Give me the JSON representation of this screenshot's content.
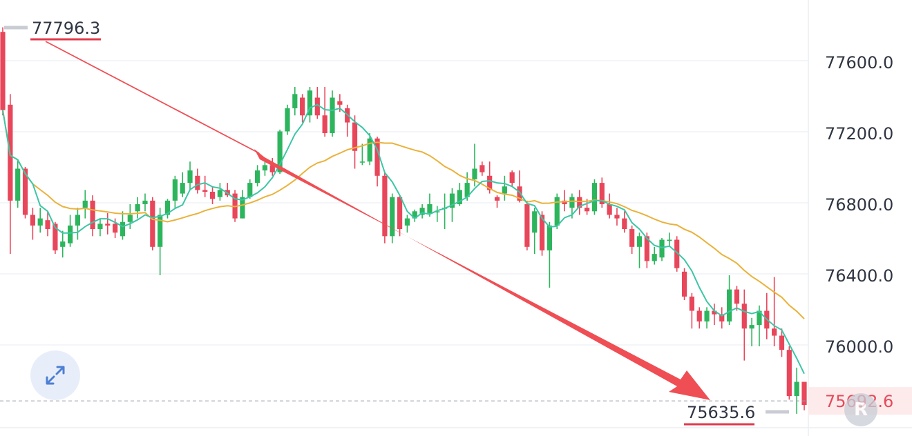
{
  "chart_data": {
    "type": "candlestick",
    "y_axis": {
      "ticks": [
        "77600.0",
        "77200.0",
        "76800.0",
        "76400.0",
        "76000.0"
      ],
      "ylim": [
        75580,
        77920
      ]
    },
    "annotations": {
      "high_label": "77796.3",
      "low_label": "75635.6",
      "current_price": "75692.6"
    },
    "colors": {
      "up": "#2db55d",
      "down": "#e8465a",
      "ma_fast": "#3cc6a6",
      "ma_slow": "#eab23a",
      "arrow": "#ef4e54"
    },
    "candles": [
      [
        77770,
        77330,
        77796,
        77300
      ],
      [
        77360,
        76820,
        77420,
        76520
      ],
      [
        76820,
        77000,
        77050,
        76780
      ],
      [
        77000,
        76740,
        77010,
        76720
      ],
      [
        76740,
        76680,
        76780,
        76600
      ],
      [
        76680,
        76720,
        76780,
        76640
      ],
      [
        76710,
        76660,
        76760,
        76620
      ],
      [
        76690,
        76540,
        76700,
        76520
      ],
      [
        76560,
        76590,
        76650,
        76500
      ],
      [
        76580,
        76680,
        76740,
        76560
      ],
      [
        76680,
        76740,
        76780,
        76600
      ],
      [
        76780,
        76820,
        76880,
        76720
      ],
      [
        76820,
        76660,
        76850,
        76620
      ],
      [
        76660,
        76690,
        76720,
        76620
      ],
      [
        76690,
        76680,
        76750,
        76630
      ],
      [
        76690,
        76640,
        76720,
        76610
      ],
      [
        76620,
        76700,
        76760,
        76600
      ],
      [
        76700,
        76740,
        76800,
        76660
      ],
      [
        76760,
        76800,
        76840,
        76720
      ],
      [
        76800,
        76820,
        76860,
        76760
      ],
      [
        76820,
        76560,
        76840,
        76540
      ],
      [
        76560,
        76740,
        76780,
        76400
      ],
      [
        76740,
        76820,
        76830,
        76720
      ],
      [
        76820,
        76940,
        76960,
        76780
      ],
      [
        76860,
        76920,
        76980,
        76840
      ],
      [
        76920,
        76990,
        77040,
        76880
      ],
      [
        76960,
        76880,
        77000,
        76860
      ],
      [
        76880,
        76870,
        76960,
        76840
      ],
      [
        76870,
        76830,
        76900,
        76800
      ],
      [
        76840,
        76880,
        76920,
        76820
      ],
      [
        76880,
        76850,
        76920,
        76840
      ],
      [
        76860,
        76720,
        76880,
        76700
      ],
      [
        76720,
        76840,
        76880,
        76720
      ],
      [
        76840,
        76920,
        76940,
        76830
      ],
      [
        76920,
        76990,
        77020,
        76900
      ],
      [
        76990,
        77020,
        77050,
        76960
      ],
      [
        77020,
        76980,
        77060,
        76960
      ],
      [
        76980,
        77210,
        77220,
        76970
      ],
      [
        77210,
        77340,
        77360,
        77190
      ],
      [
        77340,
        77420,
        77460,
        77300
      ],
      [
        77400,
        77300,
        77420,
        77260
      ],
      [
        77300,
        77440,
        77460,
        77260
      ],
      [
        77400,
        77300,
        77460,
        77280
      ],
      [
        77300,
        77200,
        77460,
        77180
      ],
      [
        77200,
        77400,
        77440,
        77180
      ],
      [
        77380,
        77360,
        77420,
        77320
      ],
      [
        77340,
        77260,
        77360,
        77180
      ],
      [
        77260,
        77100,
        77300,
        77000
      ],
      [
        77040,
        77040,
        77140,
        77020
      ],
      [
        77040,
        77170,
        77200,
        77020
      ],
      [
        77170,
        76960,
        77180,
        76900
      ],
      [
        76960,
        76620,
        76980,
        76580
      ],
      [
        76620,
        76840,
        76860,
        76580
      ],
      [
        76840,
        76660,
        76850,
        76620
      ],
      [
        76680,
        76720,
        76740,
        76640
      ],
      [
        76720,
        76760,
        76770,
        76700
      ],
      [
        76740,
        76780,
        76800,
        76720
      ],
      [
        76750,
        76800,
        76860,
        76730
      ],
      [
        76760,
        76760,
        76790,
        76700
      ],
      [
        76780,
        76780,
        76860,
        76660
      ],
      [
        76780,
        76860,
        76890,
        76700
      ],
      [
        76800,
        76880,
        76920,
        76790
      ],
      [
        76840,
        76920,
        76980,
        76820
      ],
      [
        76940,
        77000,
        77140,
        76900
      ],
      [
        77020,
        76980,
        77040,
        76960
      ],
      [
        76960,
        76880,
        77040,
        76860
      ],
      [
        76840,
        76820,
        76850,
        76780
      ],
      [
        76860,
        76900,
        76960,
        76820
      ],
      [
        76980,
        76920,
        76990,
        76900
      ],
      [
        76900,
        76820,
        76990,
        76810
      ],
      [
        76800,
        76560,
        76820,
        76540
      ],
      [
        76640,
        76760,
        76780,
        76520
      ],
      [
        76740,
        76540,
        76760,
        76510
      ],
      [
        76540,
        76680,
        76700,
        76330
      ],
      [
        76680,
        76840,
        76860,
        76660
      ],
      [
        76820,
        76800,
        76880,
        76760
      ],
      [
        76780,
        76840,
        76860,
        76720
      ],
      [
        76840,
        76780,
        76880,
        76740
      ],
      [
        76780,
        76760,
        76830,
        76740
      ],
      [
        76760,
        76920,
        76940,
        76740
      ],
      [
        76920,
        76800,
        76950,
        76780
      ],
      [
        76800,
        76740,
        76860,
        76720
      ],
      [
        76740,
        76720,
        76780,
        76680
      ],
      [
        76720,
        76660,
        76760,
        76640
      ],
      [
        76660,
        76560,
        76680,
        76520
      ],
      [
        76560,
        76620,
        76640,
        76440
      ],
      [
        76620,
        76480,
        76640,
        76440
      ],
      [
        76480,
        76520,
        76560,
        76460
      ],
      [
        76500,
        76600,
        76610,
        76480
      ],
      [
        76600,
        76600,
        76640,
        76560
      ],
      [
        76600,
        76440,
        76620,
        76420
      ],
      [
        76420,
        76280,
        76440,
        76260
      ],
      [
        76280,
        76200,
        76300,
        76100
      ],
      [
        76200,
        76140,
        76220,
        76100
      ],
      [
        76140,
        76200,
        76220,
        76100
      ],
      [
        76200,
        76180,
        76240,
        76120
      ],
      [
        76180,
        76140,
        76220,
        76100
      ],
      [
        76140,
        76320,
        76400,
        76120
      ],
      [
        76320,
        76240,
        76340,
        76200
      ],
      [
        76240,
        76100,
        76320,
        75920
      ],
      [
        76100,
        76120,
        76160,
        76000
      ],
      [
        76120,
        76200,
        76230,
        76000
      ],
      [
        76200,
        76100,
        76300,
        76040
      ],
      [
        76100,
        76060,
        76390,
        76000
      ],
      [
        76060,
        75980,
        76100,
        75940
      ],
      [
        75980,
        75720,
        76000,
        75700
      ],
      [
        75720,
        75800,
        75880,
        75620
      ],
      [
        75800,
        75670,
        75800,
        75640
      ]
    ]
  }
}
